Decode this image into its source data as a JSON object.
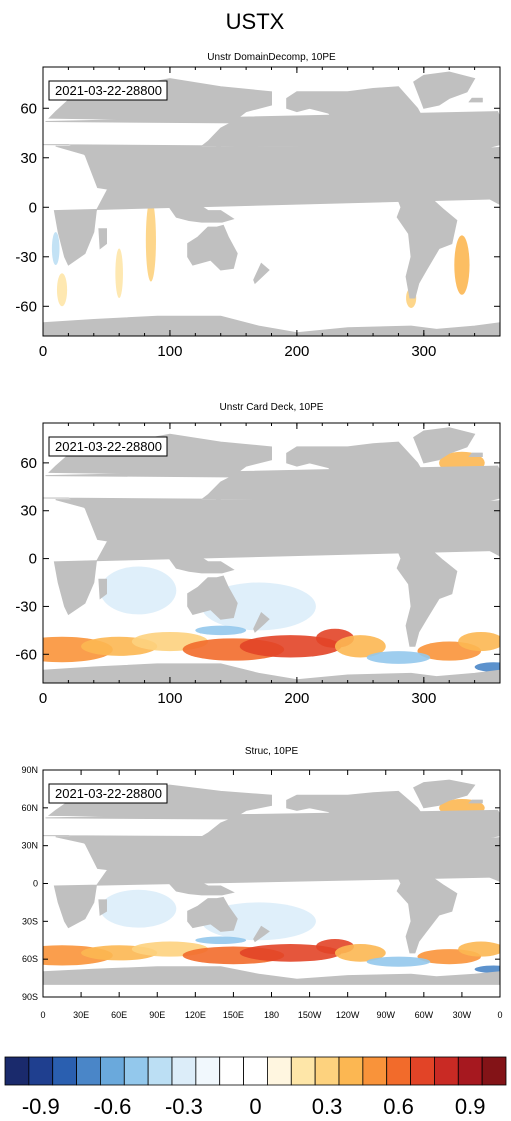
{
  "title": "USTX",
  "panels": [
    {
      "subtitle": "Unstr DomainDecomp, 10PE",
      "timestamp": "2021-03-22-28800",
      "x_ticks": [
        "0",
        "100",
        "200",
        "300"
      ],
      "y_ticks": [
        "60",
        "30",
        "0",
        "-30",
        "-60"
      ],
      "field": "sparse"
    },
    {
      "subtitle": "Unstr Card Deck, 10PE",
      "timestamp": "2021-03-22-28800",
      "x_ticks": [
        "0",
        "100",
        "200",
        "300"
      ],
      "y_ticks": [
        "60",
        "30",
        "0",
        "-30",
        "-60"
      ],
      "field": "full"
    },
    {
      "subtitle": "Struc, 10PE",
      "timestamp": "2021-03-22-28800",
      "x_ticks": [
        "0",
        "30E",
        "60E",
        "90E",
        "120E",
        "150E",
        "180",
        "150W",
        "120W",
        "90W",
        "60W",
        "30W",
        "0"
      ],
      "y_ticks": [
        "90N",
        "60N",
        "30N",
        "0",
        "30S",
        "60S",
        "90S"
      ],
      "field": "full"
    }
  ],
  "colorbar": {
    "colors": [
      "#1a2a6c",
      "#1f3f8f",
      "#2a5fb0",
      "#4a86c8",
      "#6aa9dc",
      "#93c8ec",
      "#bcdff4",
      "#dcedf9",
      "#f1f8fd",
      "#ffffff",
      "#ffffff",
      "#fff6e0",
      "#fee6a8",
      "#fdd27e",
      "#fcb752",
      "#f9933a",
      "#f26b2b",
      "#e24427",
      "#c92a24",
      "#a6181f",
      "#831317"
    ],
    "labels": [
      "-0.9",
      "-0.6",
      "-0.3",
      "0",
      "0.3",
      "0.6",
      "0.9"
    ]
  },
  "land_color": "#c0c0c0",
  "ocean_color": "#ffffff"
}
